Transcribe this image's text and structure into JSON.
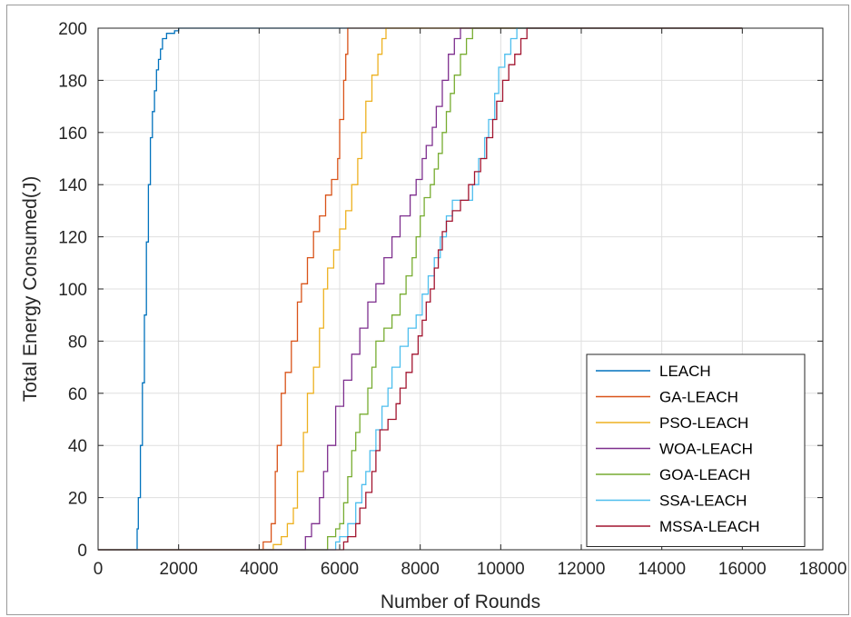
{
  "chart_data": {
    "type": "line",
    "title": "",
    "xlabel": "Number of Rounds",
    "ylabel": "Total Energy Consumed(J)",
    "xlim": [
      0,
      18000
    ],
    "ylim": [
      0,
      200
    ],
    "xticks": [
      0,
      2000,
      4000,
      6000,
      8000,
      10000,
      12000,
      14000,
      16000,
      18000
    ],
    "yticks": [
      0,
      20,
      40,
      60,
      80,
      100,
      120,
      140,
      160,
      180,
      200
    ],
    "xtick_labels": [
      "0",
      "2000",
      "4000",
      "6000",
      "8000",
      "10000",
      "12000",
      "14000",
      "16000",
      "18000"
    ],
    "ytick_labels": [
      "0",
      "20",
      "40",
      "60",
      "80",
      "100",
      "120",
      "140",
      "160",
      "180",
      "200"
    ],
    "grid": true,
    "legend_position": "bottom-right",
    "series": [
      {
        "name": "LEACH",
        "color": "#0072BD",
        "points": [
          [
            0,
            0
          ],
          [
            950,
            0
          ],
          [
            970,
            8
          ],
          [
            1000,
            20
          ],
          [
            1050,
            40
          ],
          [
            1100,
            64
          ],
          [
            1150,
            90
          ],
          [
            1200,
            118
          ],
          [
            1250,
            140
          ],
          [
            1300,
            158
          ],
          [
            1350,
            168
          ],
          [
            1400,
            176
          ],
          [
            1450,
            184
          ],
          [
            1500,
            188
          ],
          [
            1550,
            192
          ],
          [
            1600,
            196
          ],
          [
            1700,
            198
          ],
          [
            1900,
            199
          ],
          [
            2000,
            200
          ],
          [
            16000,
            200
          ]
        ]
      },
      {
        "name": "GA-LEACH",
        "color": "#D95319",
        "points": [
          [
            0,
            0
          ],
          [
            4000,
            0
          ],
          [
            4100,
            3
          ],
          [
            4300,
            10
          ],
          [
            4400,
            30
          ],
          [
            4450,
            40
          ],
          [
            4550,
            60
          ],
          [
            4650,
            68
          ],
          [
            4800,
            80
          ],
          [
            4950,
            95
          ],
          [
            5050,
            102
          ],
          [
            5200,
            112
          ],
          [
            5350,
            122
          ],
          [
            5500,
            128
          ],
          [
            5650,
            136
          ],
          [
            5800,
            142
          ],
          [
            5950,
            150
          ],
          [
            6000,
            165
          ],
          [
            6100,
            180
          ],
          [
            6150,
            190
          ],
          [
            6200,
            200
          ],
          [
            16000,
            200
          ]
        ]
      },
      {
        "name": "PSO-LEACH",
        "color": "#EDB120",
        "points": [
          [
            0,
            0
          ],
          [
            4200,
            0
          ],
          [
            4350,
            2
          ],
          [
            4550,
            5
          ],
          [
            4700,
            10
          ],
          [
            4850,
            16
          ],
          [
            4950,
            30
          ],
          [
            5100,
            45
          ],
          [
            5200,
            60
          ],
          [
            5350,
            70
          ],
          [
            5500,
            85
          ],
          [
            5600,
            100
          ],
          [
            5700,
            108
          ],
          [
            5850,
            115
          ],
          [
            6000,
            123
          ],
          [
            6150,
            130
          ],
          [
            6300,
            140
          ],
          [
            6450,
            150
          ],
          [
            6550,
            160
          ],
          [
            6650,
            172
          ],
          [
            6800,
            182
          ],
          [
            6950,
            190
          ],
          [
            7050,
            196
          ],
          [
            7150,
            200
          ],
          [
            16000,
            200
          ]
        ]
      },
      {
        "name": "WOA-LEACH",
        "color": "#7E2F8E",
        "points": [
          [
            0,
            0
          ],
          [
            5000,
            0
          ],
          [
            5150,
            5
          ],
          [
            5300,
            10
          ],
          [
            5500,
            20
          ],
          [
            5600,
            30
          ],
          [
            5700,
            40
          ],
          [
            5900,
            55
          ],
          [
            6100,
            65
          ],
          [
            6300,
            75
          ],
          [
            6500,
            85
          ],
          [
            6700,
            95
          ],
          [
            6900,
            102
          ],
          [
            7100,
            112
          ],
          [
            7300,
            120
          ],
          [
            7500,
            128
          ],
          [
            7750,
            136
          ],
          [
            7900,
            142
          ],
          [
            8050,
            150
          ],
          [
            8150,
            155
          ],
          [
            8300,
            162
          ],
          [
            8400,
            170
          ],
          [
            8550,
            180
          ],
          [
            8700,
            190
          ],
          [
            8850,
            196
          ],
          [
            9000,
            200
          ],
          [
            16000,
            200
          ]
        ]
      },
      {
        "name": "GOA-LEACH",
        "color": "#77AC30",
        "points": [
          [
            0,
            0
          ],
          [
            5600,
            0
          ],
          [
            5700,
            5
          ],
          [
            5900,
            8
          ],
          [
            6000,
            10
          ],
          [
            6100,
            18
          ],
          [
            6200,
            28
          ],
          [
            6300,
            38
          ],
          [
            6400,
            45
          ],
          [
            6500,
            52
          ],
          [
            6700,
            62
          ],
          [
            6800,
            70
          ],
          [
            6900,
            80
          ],
          [
            7100,
            85
          ],
          [
            7300,
            90
          ],
          [
            7500,
            98
          ],
          [
            7650,
            105
          ],
          [
            7800,
            112
          ],
          [
            7900,
            120
          ],
          [
            8000,
            128
          ],
          [
            8100,
            135
          ],
          [
            8250,
            140
          ],
          [
            8350,
            146
          ],
          [
            8450,
            152
          ],
          [
            8550,
            160
          ],
          [
            8650,
            168
          ],
          [
            8750,
            175
          ],
          [
            8850,
            182
          ],
          [
            9000,
            190
          ],
          [
            9150,
            196
          ],
          [
            9300,
            200
          ],
          [
            16000,
            200
          ]
        ]
      },
      {
        "name": "SSA-LEACH",
        "color": "#4DBEEE",
        "points": [
          [
            0,
            0
          ],
          [
            5800,
            0
          ],
          [
            5900,
            3
          ],
          [
            6000,
            5
          ],
          [
            6200,
            10
          ],
          [
            6400,
            18
          ],
          [
            6550,
            25
          ],
          [
            6650,
            30
          ],
          [
            6750,
            38
          ],
          [
            6900,
            46
          ],
          [
            7050,
            55
          ],
          [
            7200,
            62
          ],
          [
            7300,
            70
          ],
          [
            7500,
            78
          ],
          [
            7700,
            85
          ],
          [
            7900,
            90
          ],
          [
            8050,
            98
          ],
          [
            8200,
            105
          ],
          [
            8350,
            112
          ],
          [
            8500,
            120
          ],
          [
            8650,
            128
          ],
          [
            8800,
            134
          ],
          [
            9100,
            134
          ],
          [
            9300,
            140
          ],
          [
            9450,
            150
          ],
          [
            9600,
            158
          ],
          [
            9700,
            165
          ],
          [
            9850,
            175
          ],
          [
            9950,
            185
          ],
          [
            10100,
            190
          ],
          [
            10250,
            196
          ],
          [
            10400,
            200
          ],
          [
            16000,
            200
          ]
        ]
      },
      {
        "name": "MSSA-LEACH",
        "color": "#A2142F",
        "points": [
          [
            0,
            0
          ],
          [
            6000,
            0
          ],
          [
            6100,
            3
          ],
          [
            6200,
            5
          ],
          [
            6400,
            10
          ],
          [
            6500,
            16
          ],
          [
            6650,
            22
          ],
          [
            6800,
            30
          ],
          [
            6900,
            38
          ],
          [
            7000,
            46
          ],
          [
            7200,
            50
          ],
          [
            7400,
            56
          ],
          [
            7500,
            62
          ],
          [
            7650,
            68
          ],
          [
            7800,
            75
          ],
          [
            7950,
            82
          ],
          [
            8050,
            88
          ],
          [
            8150,
            95
          ],
          [
            8250,
            100
          ],
          [
            8350,
            108
          ],
          [
            8450,
            115
          ],
          [
            8550,
            122
          ],
          [
            8650,
            126
          ],
          [
            8800,
            130
          ],
          [
            9000,
            134
          ],
          [
            9200,
            140
          ],
          [
            9350,
            145
          ],
          [
            9500,
            150
          ],
          [
            9650,
            158
          ],
          [
            9800,
            165
          ],
          [
            9900,
            172
          ],
          [
            10050,
            180
          ],
          [
            10200,
            186
          ],
          [
            10350,
            190
          ],
          [
            10500,
            196
          ],
          [
            10650,
            200
          ],
          [
            16000,
            200
          ]
        ]
      }
    ]
  }
}
